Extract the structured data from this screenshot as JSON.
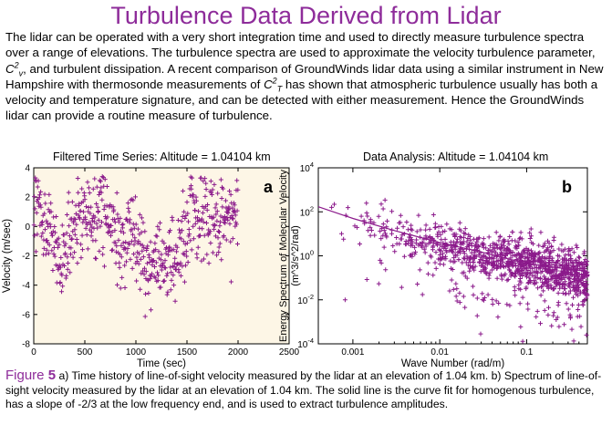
{
  "page": {
    "title": "Turbulence Data Derived from Lidar",
    "intro": {
      "p1": "The lidar can be operated with a very short integration time and used to directly measure turbulence spectra over a range of elevations. The turbulence spectra are used to approximate the velocity turbulence parameter,",
      "cv_base": "C",
      "cv_sup": "2",
      "cv_sub": "v",
      "p2": ", and turbulent dissipation. A recent comparison of GroundWinds lidar data using a similar instrument in New Hampshire with thermosonde measurements of",
      "ct_base": "C",
      "ct_sup": "2",
      "ct_sub": "T",
      "p3": "has shown that atmospheric turbulence usually has both a velocity and temperature signature, and can be detected with either measurement. Hence the GroundWinds lidar can provide a routine measure of turbulence."
    },
    "caption": {
      "figure_word": "Figure",
      "figure_number": "5",
      "text": "a) Time history of line-of-sight velocity measured by the lidar at an elevation of 1.04 km. b) Spectrum of line-of-sight velocity measured by the lidar at an elevation of 1.04 km. The solid line is the curve fit for homogenous turbulence, has a slope of -2/3 at the low frequency end, and is used to extract turbulence amplitudes."
    }
  },
  "colors": {
    "title": "#8e2c9a",
    "data": "#8b1a8b",
    "background": "#ffffff"
  },
  "chart_data": [
    {
      "type": "scatter",
      "title": "Filtered Time Series:  Altitude = 1.04104 km",
      "panel_label": "a",
      "xlabel": "Time (sec)",
      "ylabel": "Velocity (m/sec)",
      "xlim": [
        0,
        2500
      ],
      "ylim": [
        -8,
        4
      ],
      "xticks": [
        0,
        500,
        1000,
        1500,
        2000,
        2500
      ],
      "yticks": [
        -8,
        -6,
        -4,
        -2,
        0,
        2,
        4
      ],
      "marker": "+",
      "grid": false,
      "series": [
        {
          "x": [
            0,
            60,
            120,
            180,
            240,
            300,
            360,
            420,
            480,
            540,
            600,
            660,
            720,
            780,
            840,
            900,
            960,
            1020,
            1080,
            1140,
            1200,
            1260,
            1320,
            1380,
            1440,
            1500,
            1560,
            1620,
            1680,
            1740,
            1800,
            1860,
            1920,
            1980,
            2000
          ],
          "y": [
            0.5,
            1.0,
            0.3,
            -0.5,
            -2.0,
            -2.8,
            -1.0,
            -0.2,
            0.5,
            0.8,
            0.2,
            1.5,
            0.8,
            -0.8,
            -1.5,
            -0.6,
            0.2,
            -1.2,
            -2.0,
            -3.0,
            -2.2,
            -3.2,
            -2.5,
            -2.2,
            -1.0,
            0.2,
            1.2,
            0.5,
            1.0,
            0.6,
            0.3,
            0.8,
            0.4,
            1.2,
            0.3
          ]
        }
      ]
    },
    {
      "type": "scatter",
      "title": "Data Analysis:  Altitude = 1.04104 km",
      "panel_label": "b",
      "xlabel": "Wave Number (rad/m)",
      "ylabel": "Energy Spectrum of Molecular Velocity (m^3/s^2/rad)",
      "xscale": "log",
      "yscale": "log",
      "xlim": [
        0.0004,
        0.5
      ],
      "ylim": [
        0.0001,
        10000
      ],
      "xticks": [
        0.001,
        0.01,
        0.1
      ],
      "xticklabels": [
        "0.001",
        "0.01",
        "0.1"
      ],
      "yticks": [
        0.0001,
        0.01,
        1,
        100,
        10000
      ],
      "ytick_base": "10",
      "ytick_exponents": [
        "-4",
        "-2",
        "0",
        "2",
        "4"
      ],
      "marker": "+",
      "grid": false,
      "series": [
        {
          "x": [
            0.0006,
            0.0008,
            0.001,
            0.0015,
            0.002,
            0.003,
            0.005,
            0.008,
            0.01,
            0.015,
            0.02,
            0.03,
            0.05,
            0.08,
            0.1,
            0.15,
            0.2,
            0.3,
            0.4,
            0.5
          ],
          "y": [
            150,
            60,
            40,
            20,
            12,
            8,
            6,
            4,
            3,
            2,
            1.5,
            1,
            0.8,
            0.5,
            0.4,
            0.3,
            0.2,
            0.15,
            0.1,
            0.08
          ]
        },
        {
          "fit": true,
          "x": [
            0.0004,
            0.001,
            0.003,
            0.01,
            0.03,
            0.1,
            0.3,
            0.5
          ],
          "y": [
            170,
            50,
            14,
            4,
            1.5,
            0.45,
            0.25,
            0.2
          ]
        }
      ]
    }
  ]
}
